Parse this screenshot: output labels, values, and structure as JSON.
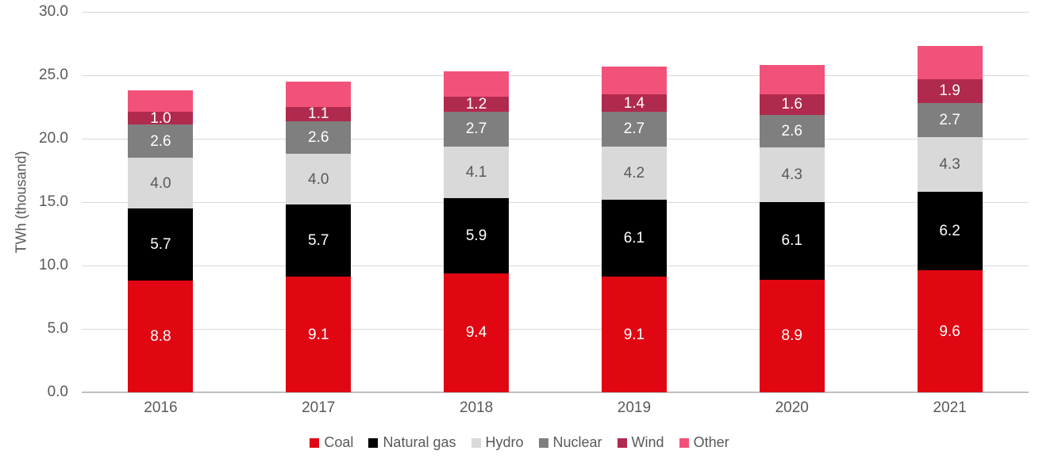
{
  "chart_data": {
    "type": "bar",
    "stacked": true,
    "title": "",
    "xlabel": "",
    "ylabel": "TWh (thousand)",
    "ylim": [
      0,
      30
    ],
    "ytick_step": 5,
    "ytick_labels": [
      "0.0",
      "5.0",
      "10.0",
      "15.0",
      "20.0",
      "25.0",
      "30.0"
    ],
    "grid": true,
    "legend_position": "bottom",
    "categories": [
      "2016",
      "2017",
      "2018",
      "2019",
      "2020",
      "2021"
    ],
    "series": [
      {
        "name": "Coal",
        "color": "#e00713",
        "label_color": "#ffffff",
        "show_labels": true,
        "values": [
          8.8,
          9.1,
          9.4,
          9.1,
          8.9,
          9.6
        ],
        "labels": [
          "8.8",
          "9.1",
          "9.4",
          "9.1",
          "8.9",
          "9.6"
        ]
      },
      {
        "name": "Natural gas",
        "color": "#000000",
        "label_color": "#ffffff",
        "show_labels": true,
        "values": [
          5.7,
          5.7,
          5.9,
          6.1,
          6.1,
          6.2
        ],
        "labels": [
          "5.7",
          "5.7",
          "5.9",
          "6.1",
          "6.1",
          "6.2"
        ]
      },
      {
        "name": "Hydro",
        "color": "#d9d9d9",
        "label_color": "#595959",
        "show_labels": true,
        "values": [
          4.0,
          4.0,
          4.1,
          4.2,
          4.3,
          4.3
        ],
        "labels": [
          "4.0",
          "4.0",
          "4.1",
          "4.2",
          "4.3",
          "4.3"
        ]
      },
      {
        "name": "Nuclear",
        "color": "#7f7f7f",
        "label_color": "#ffffff",
        "show_labels": true,
        "values": [
          2.6,
          2.6,
          2.7,
          2.7,
          2.6,
          2.7
        ],
        "labels": [
          "2.6",
          "2.6",
          "2.7",
          "2.7",
          "2.6",
          "2.7"
        ]
      },
      {
        "name": "Wind",
        "color": "#b02a4d",
        "label_color": "#ffffff",
        "show_labels": true,
        "values": [
          1.0,
          1.1,
          1.2,
          1.4,
          1.6,
          1.9
        ],
        "labels": [
          "1.0",
          "1.1",
          "1.2",
          "1.4",
          "1.6",
          "1.9"
        ]
      },
      {
        "name": "Other",
        "color": "#f2527a",
        "label_color": "#ffffff",
        "show_labels": false,
        "values": [
          1.7,
          2.0,
          2.0,
          2.2,
          2.3,
          2.6
        ],
        "labels": [
          "",
          "",
          "",
          "",
          "",
          ""
        ]
      }
    ]
  }
}
